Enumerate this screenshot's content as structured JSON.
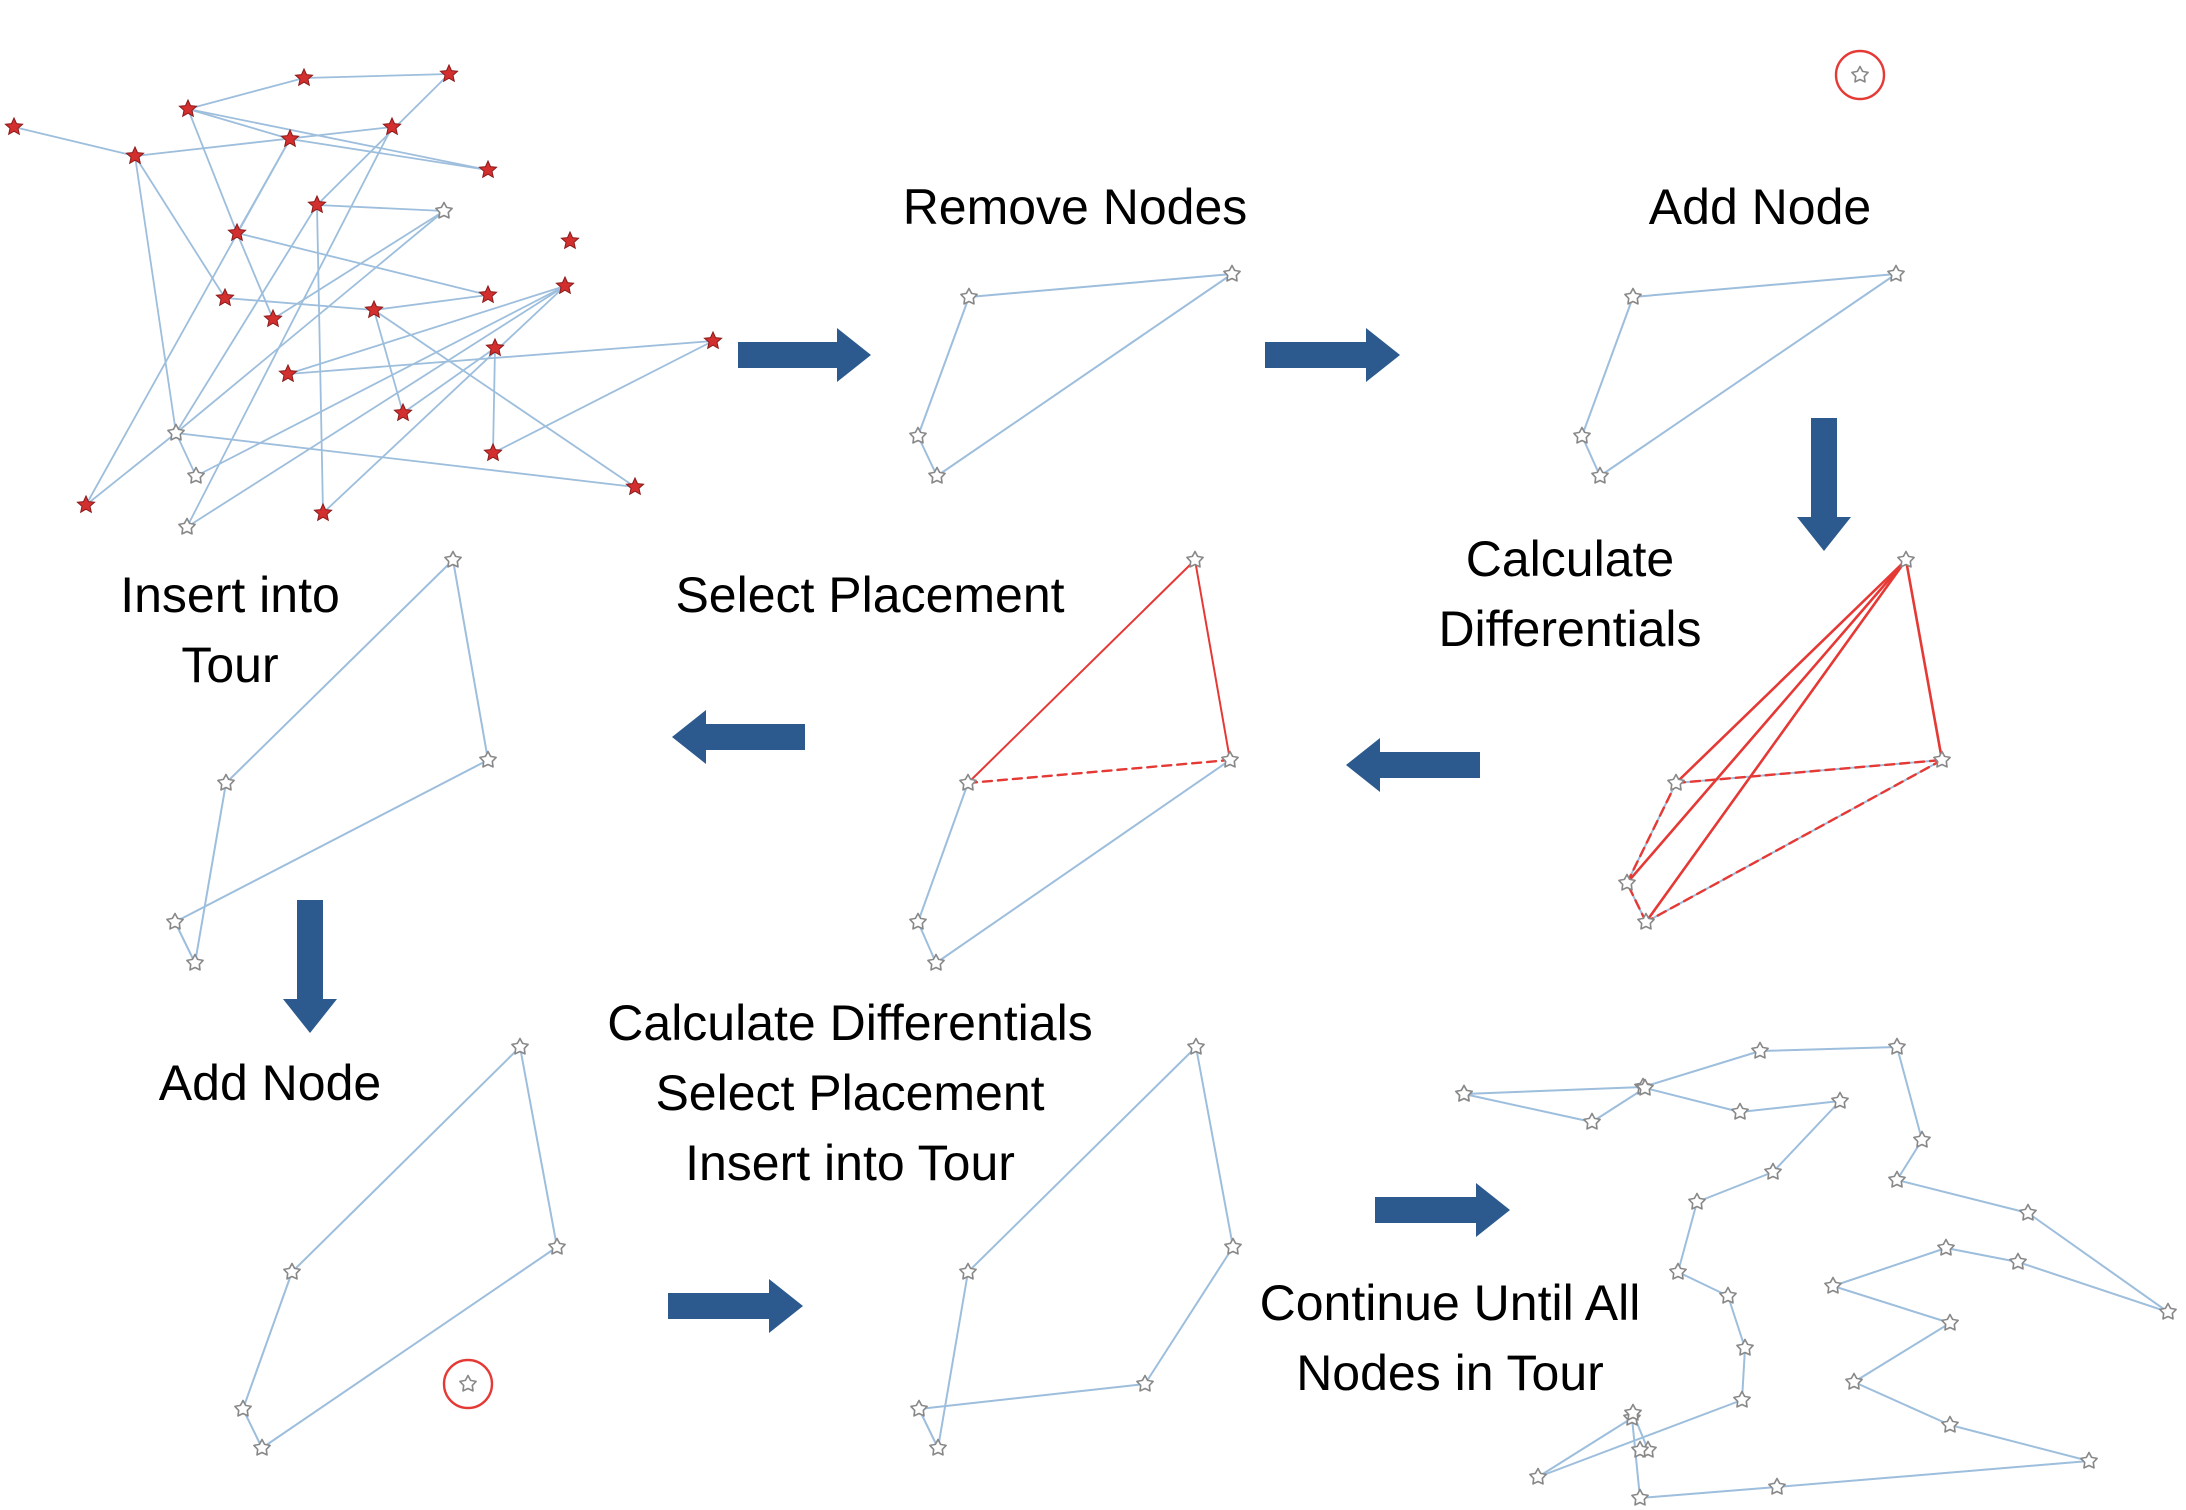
{
  "labels": {
    "remove_nodes": "Remove Nodes",
    "add_node_1": "Add Node",
    "calc_diff_1": "Calculate",
    "calc_diff_2": "Differentials",
    "select_placement": "Select Placement",
    "insert_tour_1": "Insert into",
    "insert_tour_2": "Tour",
    "add_node_2": "Add Node",
    "step_line_1": "Calculate Differentials",
    "step_line_2": "Select Placement",
    "step_line_3": "Insert into Tour",
    "continue_1": "Continue Until All",
    "continue_2": "Nodes in Tour"
  },
  "colors": {
    "edge": "#9dbedc",
    "highlight": "#e53935",
    "arrow": "#2c5a8e",
    "node_outline": "#888888",
    "node_removed": "#d32f2f"
  }
}
